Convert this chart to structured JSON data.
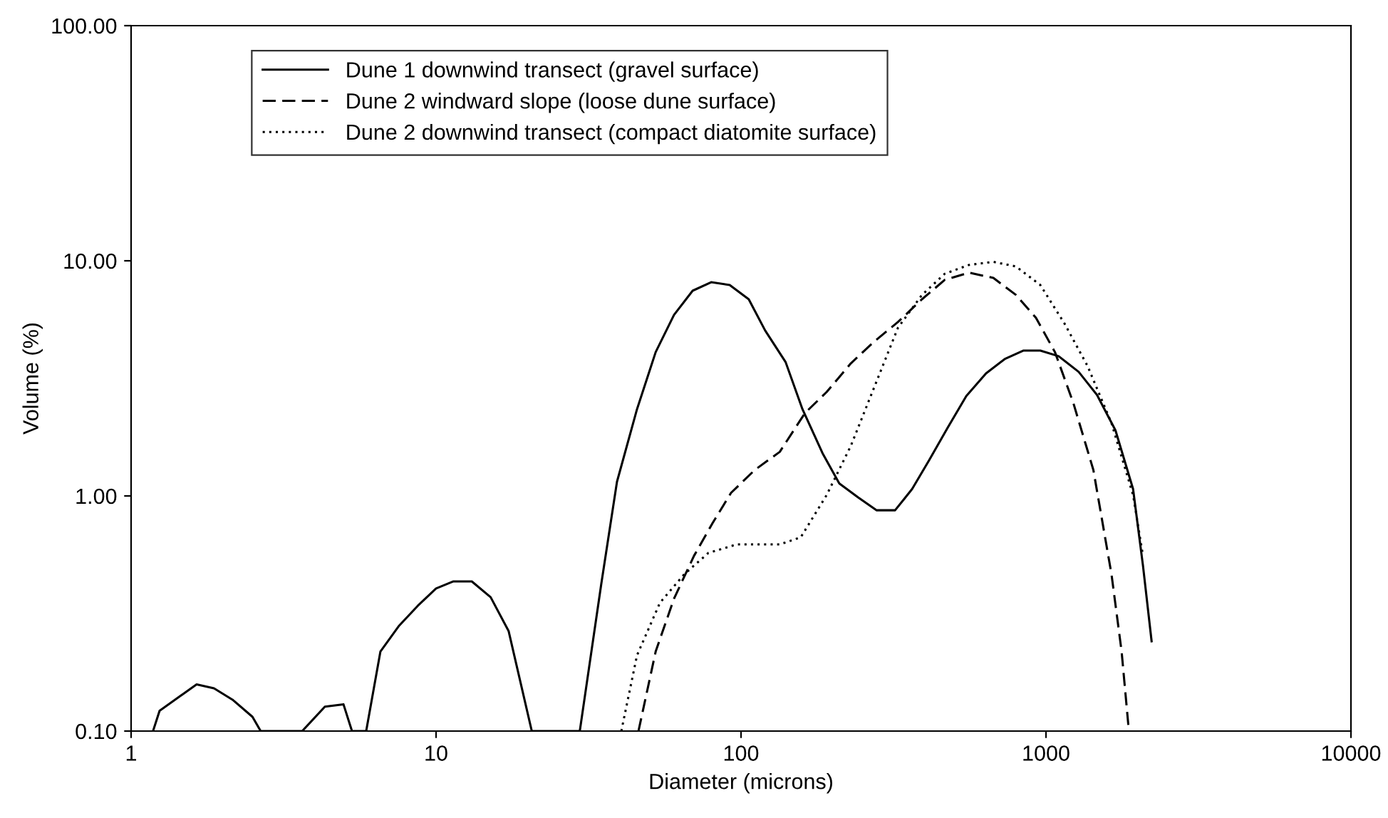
{
  "chart_data": {
    "type": "line",
    "xlabel": "Diameter (microns)",
    "ylabel": "Volume (%)",
    "log": "xy",
    "grid": false,
    "legend": "top left",
    "marker": "none",
    "xlim": [
      1,
      10000
    ],
    "xticks": [
      1,
      10,
      100,
      1000,
      10000
    ],
    "ylim": [
      0.1,
      100
    ],
    "yticks": [
      {
        "value": 0.1,
        "label": "0.10"
      },
      {
        "value": 1,
        "label": "1.00"
      },
      {
        "value": 10,
        "label": "10.00"
      },
      {
        "value": 100,
        "label": "100.00"
      }
    ],
    "series": [
      {
        "name": "Dune 1 downwind transect (gravel surface)",
        "color": "#000000",
        "line_style": "solid",
        "x": [
          1.18,
          1.24,
          1.64,
          1.87,
          2.15,
          2.5,
          2.66,
          3.64,
          4.32,
          4.97,
          5.3,
          5.9,
          6.57,
          7.57,
          8.71,
          10,
          11.4,
          13.1,
          15.1,
          17.3,
          20.6,
          29.6,
          34.8,
          39.2,
          45.6,
          52.5,
          60.3,
          69.4,
          79.8,
          91.8,
          106,
          120,
          140,
          159,
          185,
          210,
          242,
          278,
          320,
          364,
          414,
          476,
          548,
          636,
          732,
          842,
          958,
          1100,
          1280,
          1470,
          1690,
          1930,
          2080,
          2220
        ],
        "values": [
          0.1,
          0.122,
          0.158,
          0.152,
          0.136,
          0.115,
          0.1,
          0.1,
          0.127,
          0.13,
          0.1,
          0.1,
          0.218,
          0.281,
          0.341,
          0.404,
          0.433,
          0.433,
          0.371,
          0.266,
          0.1,
          0.1,
          0.421,
          1.15,
          2.34,
          4.09,
          5.89,
          7.46,
          8.11,
          7.89,
          6.86,
          5.05,
          3.71,
          2.34,
          1.52,
          1.13,
          0.986,
          0.869,
          0.869,
          1.07,
          1.42,
          1.95,
          2.66,
          3.32,
          3.82,
          4.15,
          4.15,
          3.93,
          3.37,
          2.69,
          1.9,
          1.07,
          0.505,
          0.241
        ]
      },
      {
        "name": "Dune 2 windward slope (loose dune surface)",
        "color": "#000000",
        "line_style": "dashed",
        "x": [
          46.1,
          52.5,
          60.3,
          70.1,
          80.7,
          92.7,
          111,
          134,
          162,
          191,
          229,
          272,
          327,
          392,
          466,
          559,
          672,
          797,
          927,
          1070,
          1230,
          1430,
          1640,
          1770,
          1870
        ],
        "values": [
          0.1,
          0.218,
          0.366,
          0.556,
          0.767,
          1.03,
          1.29,
          1.54,
          2.25,
          2.77,
          3.66,
          4.51,
          5.49,
          6.86,
          8.3,
          8.9,
          8.46,
          7.16,
          5.72,
          4.09,
          2.48,
          1.29,
          0.464,
          0.218,
          0.1
        ]
      },
      {
        "name": "Dune 2 downwind transect (compact diatomite surface)",
        "color": "#000000",
        "line_style": "dotted",
        "x": [
          40.5,
          45.6,
          54.2,
          65.1,
          78.1,
          96.8,
          134,
          157,
          191,
          229,
          272,
          327,
          392,
          466,
          559,
          672,
          797,
          958,
          1150,
          1370,
          1640,
          1930,
          2080
        ],
        "values": [
          0.1,
          0.21,
          0.351,
          0.464,
          0.572,
          0.622,
          0.622,
          0.667,
          1.01,
          1.63,
          2.85,
          5.19,
          7.16,
          8.81,
          9.6,
          9.9,
          9.46,
          7.89,
          5.41,
          3.56,
          2.04,
          1.01,
          0.556
        ]
      }
    ]
  }
}
